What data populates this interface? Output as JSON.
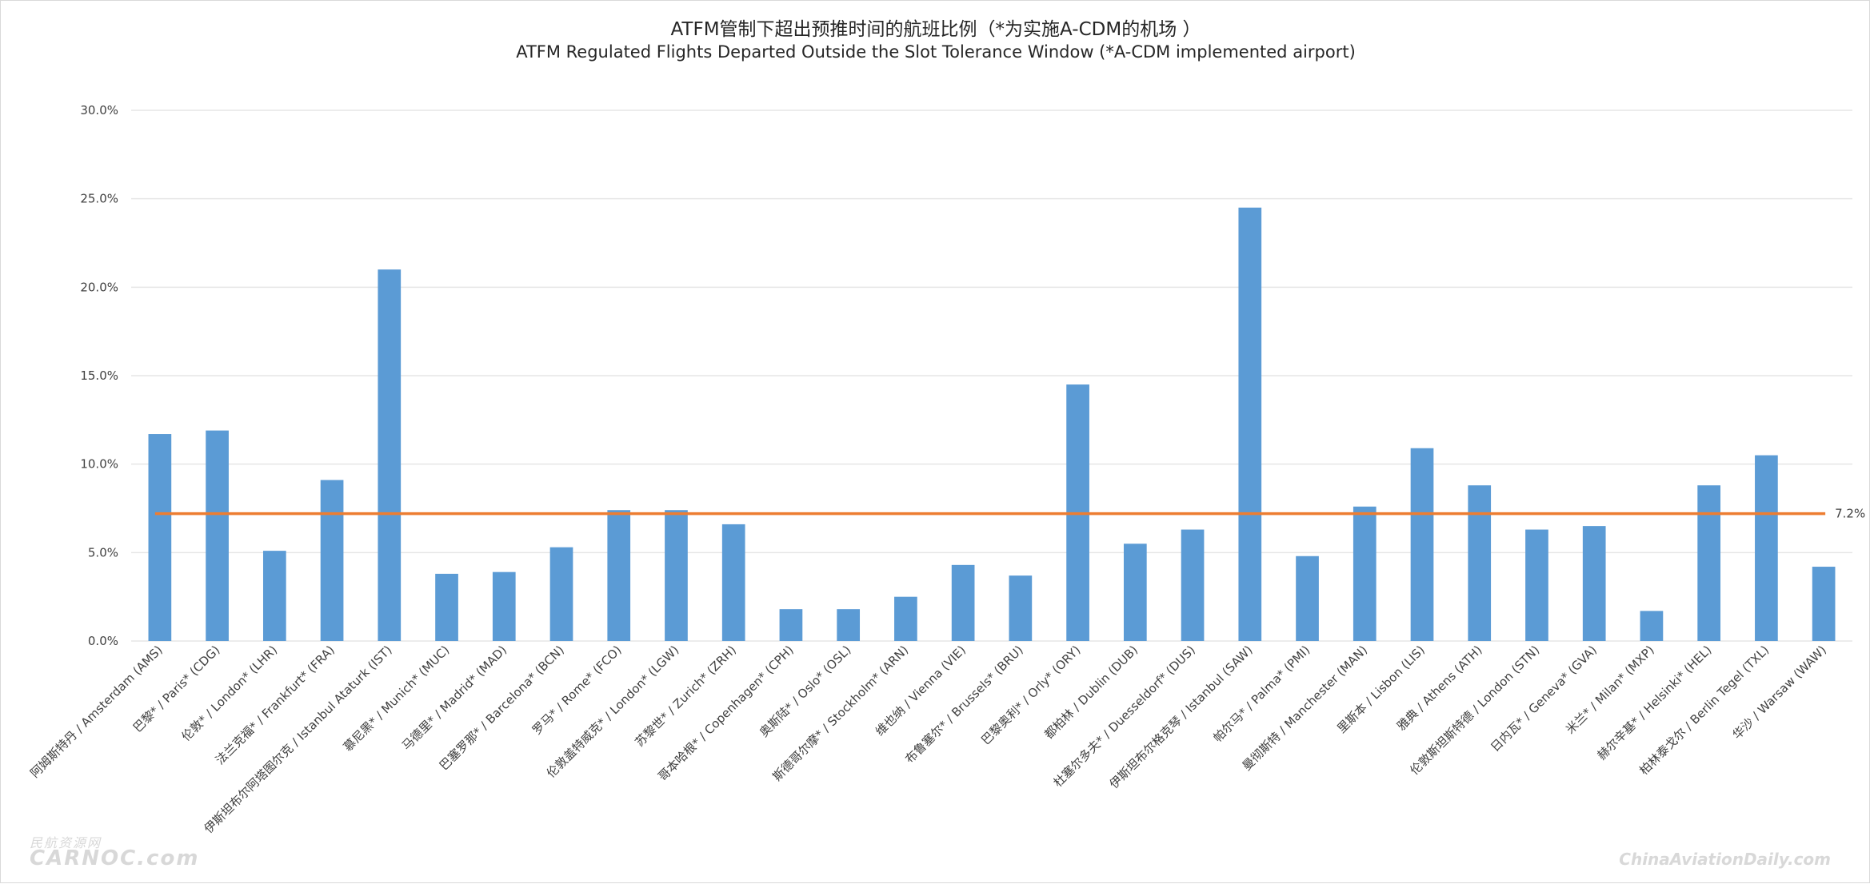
{
  "title_cn": "ATFM管制下超出预推时间的航班比例（*为实施A-CDM的机场 ）",
  "title_en": "ATFM Regulated Flights Departed Outside the Slot Tolerance Window (*A-CDM implemented airport)",
  "watermark_left_top": "民航资源网",
  "watermark_left": "CARNOC.com",
  "watermark_right": "ChinaAviationDaily.com",
  "colors": {
    "bar": "#5b9bd5",
    "average_line": "#ed7d31",
    "grid": "#e6e6e6"
  },
  "chart_data": {
    "type": "bar",
    "title": "ATFM管制下超出预推时间的航班比例（*为实施A-CDM的机场 ）",
    "subtitle": "ATFM Regulated Flights Departed Outside the Slot Tolerance Window (*A-CDM implemented airport)",
    "xlabel": "",
    "ylabel": "",
    "ylim": [
      0,
      30
    ],
    "y_ticks": [
      "0.0%",
      "5.0%",
      "10.0%",
      "15.0%",
      "20.0%",
      "25.0%",
      "30.0%"
    ],
    "grid": true,
    "categories": [
      "阿姆斯特丹 / Amsterdam (AMS)",
      "巴黎* / Paris* (CDG)",
      "伦敦* / London* (LHR)",
      "法兰克福* / Frankfurt* (FRA)",
      "伊斯坦布尔阿塔图尔克 / Istanbul Ataturk (IST)",
      "慕尼黑* / Munich* (MUC)",
      "马德里* / Madrid* (MAD)",
      "巴塞罗那* / Barcelona* (BCN)",
      "罗马* / Rome* (FCO)",
      "伦敦盖特威克* / London* (LGW)",
      "苏黎世* / Zurich* (ZRH)",
      "哥本哈根* / Copenhagen* (CPH)",
      "奥斯陆* / Oslo* (OSL)",
      "斯德哥尔摩* / Stockholm* (ARN)",
      "维也纳 / Vienna (VIE)",
      "布鲁塞尔* / Brussels* (BRU)",
      "巴黎奥利* / Orly* (ORY)",
      "都柏林 / Dublin (DUB)",
      "杜塞尔多夫* / Duesseldorf* (DUS)",
      "伊斯坦布尔格克琴 / Istanbul (SAW)",
      "帕尔马* / Palma* (PMI)",
      "曼彻斯特 / Manchester (MAN)",
      "里斯本 / Lisbon (LIS)",
      "雅典 / Athens (ATH)",
      "伦敦斯坦斯特德 / London (STN)",
      "日内瓦* / Geneva* (GVA)",
      "米兰* / Milan* (MXP)",
      "赫尔辛基* / Helsinki* (HEL)",
      "柏林泰戈尔 / Berlin Tegel (TXL)",
      "华沙 / Warsaw (WAW)"
    ],
    "series": [
      {
        "type": "bar",
        "values": [
          11.7,
          11.9,
          5.1,
          9.1,
          21.0,
          3.8,
          3.9,
          5.3,
          7.4,
          7.4,
          6.6,
          1.8,
          1.8,
          2.5,
          4.3,
          3.7,
          14.5,
          5.5,
          6.3,
          24.5,
          4.8,
          7.6,
          10.9,
          8.8,
          6.3,
          6.5,
          1.7,
          8.8,
          10.5,
          4.2
        ]
      },
      {
        "type": "line",
        "value": 7.2,
        "label": "7.2%"
      }
    ]
  }
}
